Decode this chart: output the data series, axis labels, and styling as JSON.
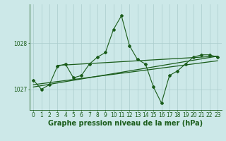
{
  "bg_color": "#cce8e8",
  "grid_color": "#aacccc",
  "line_color": "#1a5c1a",
  "title": "Graphe pression niveau de la mer (hPa)",
  "xlim": [
    -0.5,
    23.5
  ],
  "ylim": [
    1026.55,
    1028.85
  ],
  "yticks": [
    1027,
    1028
  ],
  "xticks": [
    0,
    1,
    2,
    3,
    4,
    5,
    6,
    7,
    8,
    9,
    10,
    11,
    12,
    13,
    14,
    15,
    16,
    17,
    18,
    19,
    20,
    21,
    22,
    23
  ],
  "values1": [
    1027.2,
    1027.0,
    1027.1,
    1027.5,
    1027.55,
    1027.25,
    1027.3,
    1027.55,
    1027.7,
    1027.8,
    1028.3,
    1028.6,
    1027.95,
    1027.65,
    1027.55,
    1027.05,
    1026.7,
    1027.3,
    1027.4,
    1027.55,
    1027.7,
    1027.75,
    1027.75,
    1027.7
  ],
  "trend1_x": [
    0,
    23
  ],
  "trend1_y": [
    1027.1,
    1027.62
  ],
  "trend2_x": [
    0,
    23
  ],
  "trend2_y": [
    1027.05,
    1027.72
  ],
  "trend3_x": [
    3,
    23
  ],
  "trend3_y": [
    1027.52,
    1027.72
  ],
  "title_fontsize": 7.0,
  "tick_fontsize": 5.5
}
